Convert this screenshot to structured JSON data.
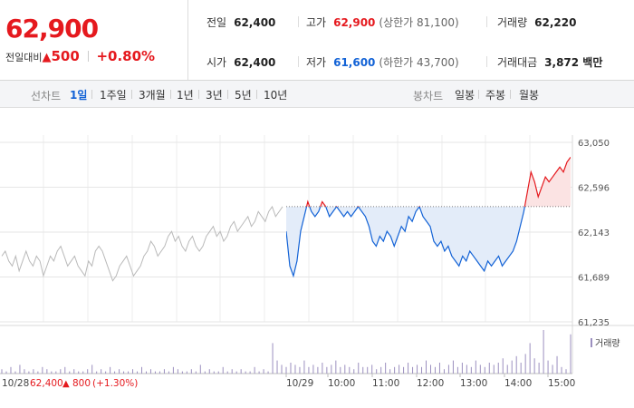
{
  "price": {
    "current": "62,900",
    "change_label": "전일대비",
    "change_arrow": "▲",
    "change_amount": "500",
    "change_pct": "+0.80%"
  },
  "stats": {
    "prev": {
      "label": "전일",
      "value": "62,400"
    },
    "high": {
      "label": "고가",
      "value": "62,900",
      "sub": "(상한가 81,100)"
    },
    "volume": {
      "label": "거래량",
      "value": "62,220"
    },
    "open": {
      "label": "시가",
      "value": "62,400"
    },
    "low": {
      "label": "저가",
      "value": "61,600",
      "sub": "(하한가 43,700)"
    },
    "amount": {
      "label": "거래대금",
      "value": "3,872 백만"
    }
  },
  "line_tabs": {
    "title": "선차트",
    "items": [
      "1일",
      "1주일",
      "3개월",
      "1년",
      "3년",
      "5년",
      "10년"
    ],
    "active": 0
  },
  "candle_tabs": {
    "title": "봉차트",
    "items": [
      "일봉",
      "주봉",
      "월봉"
    ]
  },
  "chart_data": {
    "type": "line",
    "y_ticks": [
      "63,050",
      "62,596",
      "62,143",
      "61,689",
      "61,235"
    ],
    "ylim": [
      61235,
      63050
    ],
    "baseline": 62400,
    "x_labels": [
      "10/29",
      "10:00",
      "11:00",
      "12:00",
      "13:00",
      "14:00",
      "15:00"
    ],
    "prev_day": {
      "date": "10/28",
      "close": "62,400",
      "arrow": "▲",
      "change": "800",
      "pct": "(+1.30%)"
    },
    "volume_label": "거래량",
    "colors": {
      "up": "#e5191e",
      "down": "#1262d6",
      "prev": "#b9b9b9",
      "up_fill": "#fbe3e3",
      "down_fill": "#e3ecf9",
      "volume": "#9b8fbf"
    },
    "prev_day_series": [
      61900,
      61950,
      61850,
      61800,
      61900,
      61750,
      61850,
      61950,
      61850,
      61800,
      61900,
      61850,
      61700,
      61800,
      61900,
      61850,
      61950,
      62000,
      61900,
      61800,
      61850,
      61900,
      61800,
      61750,
      61700,
      61850,
      61800,
      61950,
      62000,
      61950,
      61850,
      61750,
      61650,
      61700,
      61800,
      61850,
      61900,
      61800,
      61700,
      61750,
      61800,
      61900,
      61950,
      62050,
      62000,
      61900,
      61950,
      62000,
      62100,
      62150,
      62050,
      62100,
      62000,
      61950,
      62050,
      62100,
      62000,
      61950,
      62000,
      62100,
      62150,
      62200,
      62100,
      62150,
      62050,
      62100,
      62200,
      62250,
      62150,
      62200,
      62250,
      62300,
      62200,
      62250,
      62350,
      62300,
      62250,
      62350,
      62400,
      62300,
      62350,
      62400
    ],
    "today_series": [
      62150,
      61800,
      61700,
      61850,
      62150,
      62300,
      62450,
      62350,
      62300,
      62350,
      62450,
      62400,
      62300,
      62350,
      62400,
      62350,
      62300,
      62350,
      62300,
      62350,
      62400,
      62350,
      62300,
      62200,
      62050,
      62000,
      62100,
      62050,
      62150,
      62100,
      62000,
      62100,
      62200,
      62150,
      62300,
      62250,
      62350,
      62400,
      62300,
      62250,
      62200,
      62050,
      62000,
      62050,
      61950,
      62000,
      61900,
      61850,
      61800,
      61900,
      61850,
      61950,
      61900,
      61850,
      61800,
      61750,
      61850,
      61800,
      61850,
      61900,
      61800,
      61850,
      61900,
      61950,
      62050,
      62200,
      62350,
      62550,
      62750,
      62650,
      62500,
      62600,
      62700,
      62650,
      62700,
      62750,
      62800,
      62750,
      62850,
      62900
    ],
    "volume": [
      2,
      1,
      3,
      1,
      4,
      2,
      1,
      2,
      1,
      3,
      2,
      1,
      1,
      2,
      3,
      1,
      2,
      1,
      1,
      2,
      4,
      1,
      2,
      1,
      3,
      1,
      2,
      1,
      1,
      2,
      1,
      3,
      1,
      2,
      1,
      1,
      2,
      1,
      3,
      2,
      1,
      1,
      2,
      1,
      4,
      1,
      2,
      1,
      1,
      3,
      1,
      2,
      1,
      2,
      1,
      1,
      3,
      1,
      2,
      1,
      14,
      6,
      4,
      3,
      5,
      4,
      3,
      6,
      3,
      4,
      3,
      5,
      3,
      4,
      6,
      3,
      4,
      3,
      2,
      5,
      3,
      3,
      4,
      2,
      3,
      5,
      2,
      3,
      4,
      3,
      5,
      3,
      4,
      3,
      6,
      4,
      3,
      5,
      2,
      4,
      6,
      3,
      5,
      4,
      3,
      6,
      4,
      3,
      5,
      4,
      5,
      7,
      4,
      6,
      8,
      5,
      9,
      14,
      7,
      5,
      20,
      6,
      4,
      8,
      3,
      2,
      18
    ]
  }
}
